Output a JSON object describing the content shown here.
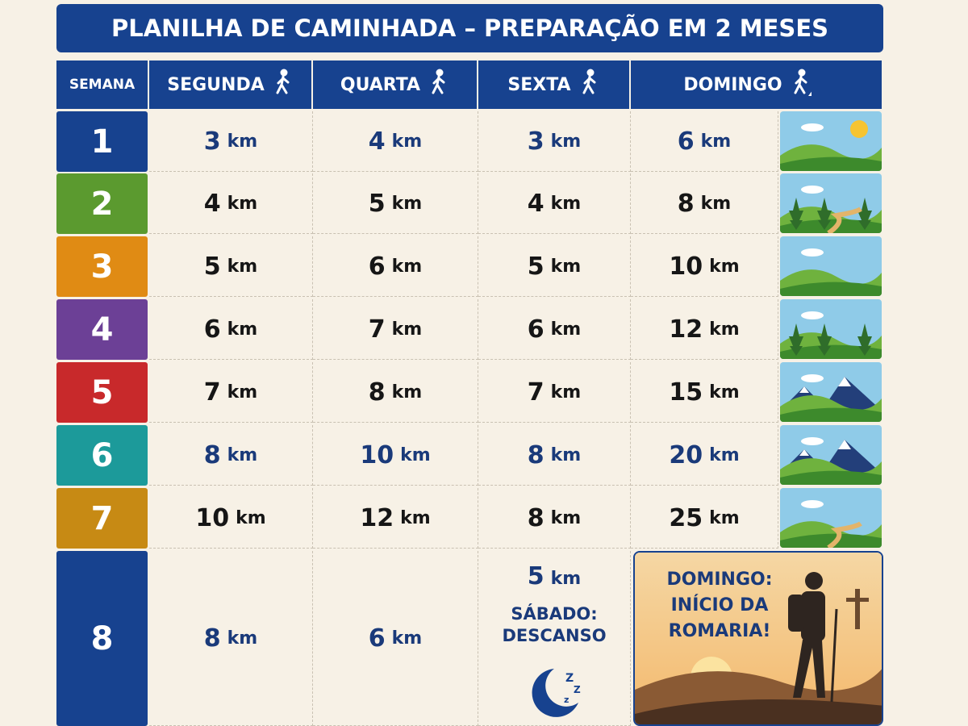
{
  "header": {
    "title": "PLANILHA DE CAMINHADA – PREPARAÇÃO EM 2 MESES"
  },
  "table": {
    "columns": [
      "SEMANA",
      "SEGUNDA",
      "QUARTA",
      "SEXTA",
      "DOMINGO"
    ],
    "rows": [
      {
        "week": 1,
        "badge_color": "#17428f",
        "text_color": "#1a3a7a",
        "cells": [
          {
            "num": 3,
            "unit": "km"
          },
          {
            "num": 4,
            "unit": "km"
          },
          {
            "num": 3,
            "unit": "km"
          },
          {
            "num": 6,
            "unit": "km"
          }
        ]
      },
      {
        "week": 2,
        "badge_color": "#5b9a2f",
        "text_color": "#161616",
        "cells": [
          {
            "num": 4,
            "unit": "km"
          },
          {
            "num": 5,
            "unit": "km"
          },
          {
            "num": 4,
            "unit": "km"
          },
          {
            "num": 8,
            "unit": "km"
          }
        ]
      },
      {
        "week": 3,
        "badge_color": "#e08b14",
        "text_color": "#161616",
        "cells": [
          {
            "num": 5,
            "unit": "km"
          },
          {
            "num": 6,
            "unit": "km"
          },
          {
            "num": 5,
            "unit": "km"
          },
          {
            "num": 10,
            "unit": "km"
          }
        ]
      },
      {
        "week": 4,
        "badge_color": "#6c4096",
        "text_color": "#161616",
        "cells": [
          {
            "num": 6,
            "unit": "km"
          },
          {
            "num": 7,
            "unit": "km"
          },
          {
            "num": 6,
            "unit": "km"
          },
          {
            "num": 12,
            "unit": "km"
          }
        ]
      },
      {
        "week": 5,
        "badge_color": "#c8292b",
        "text_color": "#161616",
        "cells": [
          {
            "num": 7,
            "unit": "km"
          },
          {
            "num": 8,
            "unit": "km"
          },
          {
            "num": 7,
            "unit": "km"
          },
          {
            "num": 15,
            "unit": "km"
          }
        ]
      },
      {
        "week": 6,
        "badge_color": "#1c9a9a",
        "text_color": "#1a3a7a",
        "cells": [
          {
            "num": 8,
            "unit": "km"
          },
          {
            "num": 10,
            "unit": "km"
          },
          {
            "num": 8,
            "unit": "km"
          },
          {
            "num": 20,
            "unit": "km"
          }
        ]
      },
      {
        "week": 7,
        "badge_color": "#c78a14",
        "text_color": "#161616",
        "cells": [
          {
            "num": 10,
            "unit": "km"
          },
          {
            "num": 12,
            "unit": "km"
          },
          {
            "num": 8,
            "unit": "km"
          },
          {
            "num": 25,
            "unit": "km"
          }
        ]
      },
      {
        "week": 8,
        "badge_color": "#17428f",
        "text_color": "#1a3a7a",
        "cells": [
          {
            "num": 8,
            "unit": "km"
          },
          {
            "num": 6,
            "unit": "km"
          },
          {
            "num": 5,
            "unit": "km"
          }
        ]
      }
    ],
    "rest_note": "SÁBADO: DESCANSO",
    "final_note": "DOMINGO: INÍCIO DA ROMARIA!"
  }
}
